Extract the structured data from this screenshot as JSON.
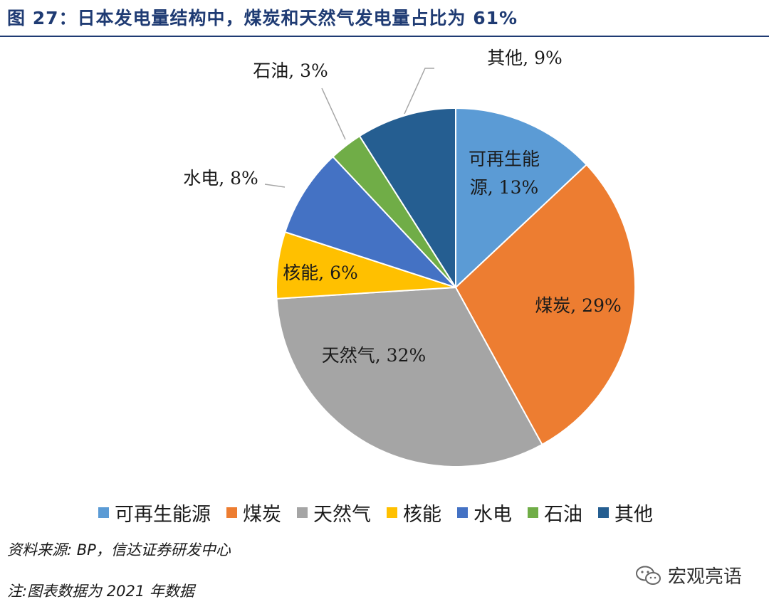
{
  "title": "图 27：日本发电量结构中，煤炭和天然气发电量占比为 61%",
  "source": "资料来源: BP，信达证券研发中心",
  "note": "注:图表数据为 2021 年数据",
  "watermark": "宏观亮语",
  "chart_data": {
    "type": "pie",
    "title": "",
    "categories": [
      "可再生能源",
      "煤炭",
      "天然气",
      "核能",
      "水电",
      "石油",
      "其他"
    ],
    "values": [
      13,
      29,
      32,
      6,
      8,
      3,
      9
    ],
    "unit": "%",
    "colors": [
      "#5b9bd5",
      "#ed7d31",
      "#a5a5a5",
      "#ffc000",
      "#4472c4",
      "#70ad47",
      "#255e91"
    ],
    "data_labels": [
      "可再生能源, 13%",
      "煤炭, 29%",
      "天然气, 32%",
      "核能, 6%",
      "水电, 8%",
      "石油, 3%",
      "其他, 9%"
    ],
    "legend_position": "bottom"
  }
}
